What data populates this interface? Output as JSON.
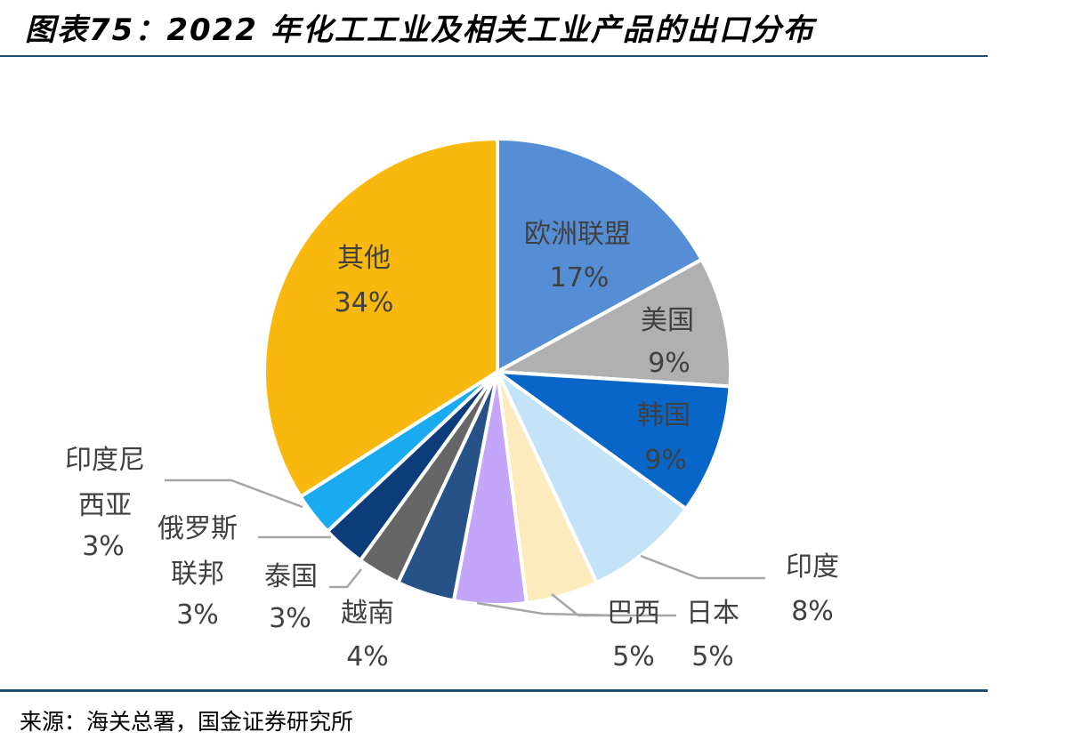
{
  "title": "图表75：2022 年化工工业及相关工业产品的出口分布",
  "source": "来源：海关总署，国金证券研究所",
  "chart_data": {
    "type": "pie",
    "title": "图表75：2022 年化工工业及相关工业产品的出口分布",
    "slices": [
      {
        "name": "欧洲联盟",
        "value": 17,
        "label": "17%",
        "color": "#558ed5"
      },
      {
        "name": "美国",
        "value": 9,
        "label": "9%",
        "color": "#b0b0b0"
      },
      {
        "name": "韩国",
        "value": 9,
        "label": "9%",
        "color": "#0766c8"
      },
      {
        "name": "印度",
        "value": 8,
        "label": "8%",
        "color": "#c5e3f7"
      },
      {
        "name": "日本",
        "value": 5,
        "label": "5%",
        "color": "#fdebbd"
      },
      {
        "name": "巴西",
        "value": 5,
        "label": "5%",
        "color": "#c3a5fa"
      },
      {
        "name": "越南",
        "value": 4,
        "label": "4%",
        "color": "#265287"
      },
      {
        "name": "泰国",
        "value": 3,
        "label": "3%",
        "color": "#666666"
      },
      {
        "name": "俄罗斯联邦",
        "value": 3,
        "label": "3%",
        "color": "#0c3d7a"
      },
      {
        "name": "印度尼西亚",
        "value": 3,
        "label": "3%",
        "color": "#1aaaf0"
      },
      {
        "name": "其他",
        "value": 34,
        "label": "34%",
        "color": "#f9b80d"
      }
    ]
  }
}
